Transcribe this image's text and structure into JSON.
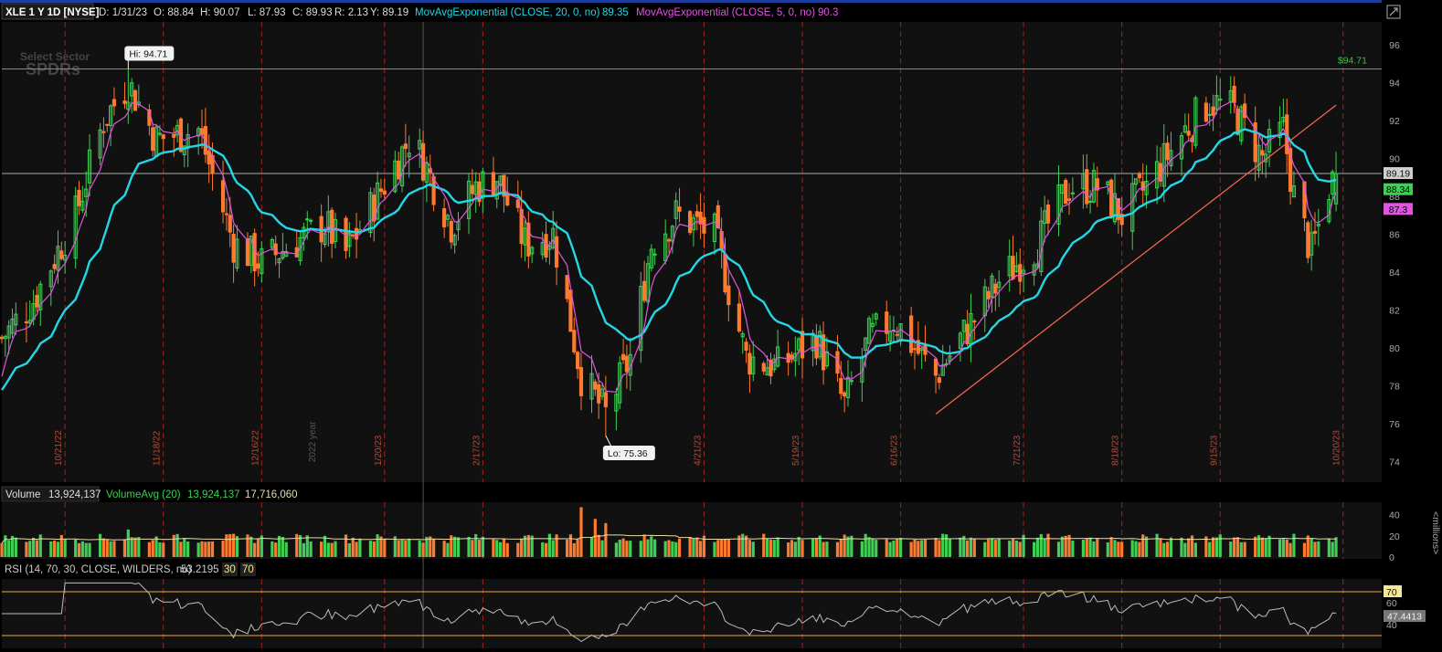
{
  "header": {
    "symbol": "XLE 1 Y 1D [NYSE]",
    "fields": [
      "D: 1/31/23",
      "O: 88.84",
      "H: 90.07",
      "L: 87.93",
      "C: 89.93",
      "R: 2.13",
      "Y: 89.19"
    ],
    "ema20_label": "MovAvgExponential (CLOSE, 20, 0, no)",
    "ema20_value": "89.35",
    "ema5_label": "MovAvgExponential (CLOSE, 5, 0, no)",
    "ema5_value": "90.3"
  },
  "watermark": {
    "line1": "Select Sector",
    "line2": "SPDRs"
  },
  "colors": {
    "up": "#3ecf55",
    "down": "#ff7a2e",
    "ema20": "#22d8e6",
    "ema5": "#e055e0",
    "hline": "#3fbf3f",
    "trend": "#ff6a50",
    "grid": "#9b2323",
    "rsi_line": "#bdbdbd",
    "rsi_bound": "#f4a640",
    "vol_avg": "#e8dca8",
    "bg": "#111111"
  },
  "price_axis": {
    "ticks": [
      "96",
      "94",
      "92",
      "90",
      "88",
      "86",
      "84",
      "82",
      "80",
      "78",
      "76",
      "74"
    ]
  },
  "date_labels": [
    "10/21/22",
    "11/18/22",
    "12/16/22",
    "1/20/23",
    "2/17/23",
    "4/21/23",
    "5/19/23",
    "6/16/23",
    "7/21/23",
    "8/18/23",
    "9/15/23",
    "10/20/23"
  ],
  "year_label": "2022 year",
  "hi_label": "Hi: 94.71",
  "lo_label": "Lo: 75.36",
  "hi_line_label": "$94.71",
  "price_badges": {
    "last": "89.19",
    "ema20": "88.34",
    "ema5": "87.3"
  },
  "volume": {
    "label": "Volume",
    "value": "13,924,137",
    "avg_label": "VolumeAvg (20)",
    "avg_value": "13,924,137",
    "other_value": "17,716,060",
    "ticks": [
      "40",
      "20",
      "0"
    ],
    "unit": "<millions>"
  },
  "rsi": {
    "label": "RSI (14, 70, 30, CLOSE, WILDERS, no)",
    "value": "53.2195",
    "lo": "30",
    "hi": "70",
    "ticks": [
      "70",
      "60",
      "40"
    ],
    "badge": "47.4413"
  },
  "chart_data": {
    "type": "candlestick",
    "title": "XLE 1 Y 1D [NYSE]",
    "ylim": [
      73,
      97
    ],
    "x_start": "2022-10-03",
    "x_end": "2023-10-31",
    "hi": 94.71,
    "lo": 75.36,
    "last": 89.19,
    "close_anchors": [
      [
        "2022-10-03",
        80.5
      ],
      [
        "2022-10-12",
        82.5
      ],
      [
        "2022-10-24",
        87.0
      ],
      [
        "2022-11-01",
        92.0
      ],
      [
        "2022-11-08",
        94.0
      ],
      [
        "2022-11-16",
        91.0
      ],
      [
        "2022-11-28",
        91.5
      ],
      [
        "2022-12-08",
        85.5
      ],
      [
        "2022-12-16",
        84.5
      ],
      [
        "2023-01-03",
        86.5
      ],
      [
        "2023-01-09",
        85.0
      ],
      [
        "2023-01-18",
        88.0
      ],
      [
        "2023-01-27",
        91.0
      ],
      [
        "2023-01-31",
        89.9
      ],
      [
        "2023-02-08",
        86.5
      ],
      [
        "2023-02-15",
        88.5
      ],
      [
        "2023-02-21",
        89.0
      ],
      [
        "2023-03-01",
        85.5
      ],
      [
        "2023-03-09",
        86.0
      ],
      [
        "2023-03-17",
        78.5
      ],
      [
        "2023-03-24",
        76.5
      ],
      [
        "2023-03-31",
        79.5
      ],
      [
        "2023-04-06",
        85.5
      ],
      [
        "2023-04-13",
        87.0
      ],
      [
        "2023-04-24",
        86.0
      ],
      [
        "2023-05-03",
        79.5
      ],
      [
        "2023-05-12",
        79.0
      ],
      [
        "2023-05-23",
        80.5
      ],
      [
        "2023-05-31",
        77.0
      ],
      [
        "2023-06-07",
        80.5
      ],
      [
        "2023-06-14",
        81.5
      ],
      [
        "2023-06-26",
        78.5
      ],
      [
        "2023-07-05",
        81.0
      ],
      [
        "2023-07-14",
        83.5
      ],
      [
        "2023-07-25",
        85.5
      ],
      [
        "2023-08-03",
        88.5
      ],
      [
        "2023-08-11",
        88.5
      ],
      [
        "2023-08-18",
        87.0
      ],
      [
        "2023-08-25",
        88.5
      ],
      [
        "2023-09-05",
        91.5
      ],
      [
        "2023-09-12",
        93.0
      ],
      [
        "2023-09-19",
        92.5
      ],
      [
        "2023-09-27",
        90.0
      ],
      [
        "2023-10-03",
        91.5
      ],
      [
        "2023-10-06",
        88.0
      ],
      [
        "2023-10-11",
        85.0
      ],
      [
        "2023-10-16",
        88.5
      ],
      [
        "2023-10-18",
        89.19
      ]
    ],
    "hi_date": "2022-11-08",
    "lo_date": "2023-03-24",
    "trendline": [
      [
        "2023-06-26",
        76.5
      ],
      [
        "2023-10-18",
        92.8
      ]
    ],
    "volume_millions_ylim": [
      0,
      50
    ],
    "volume_spikes": [
      [
        "2022-11-08",
        26
      ],
      [
        "2023-03-17",
        47
      ],
      [
        "2023-03-21",
        36
      ],
      [
        "2023-03-24",
        32
      ]
    ],
    "rsi_ylim": [
      20,
      80
    ],
    "rsi_levels": [
      30,
      70
    ]
  }
}
